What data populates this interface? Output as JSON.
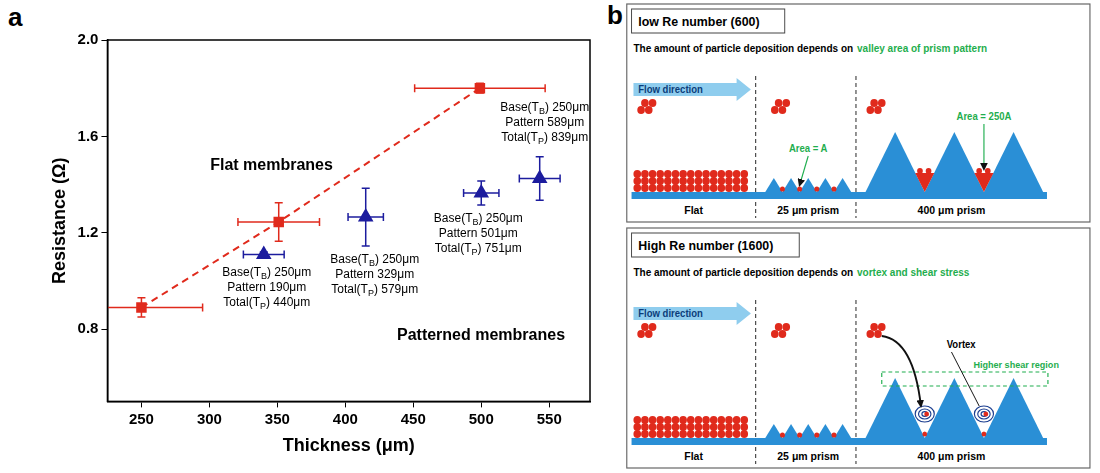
{
  "panel_label": "a",
  "chart_data": {
    "type": "scatter",
    "x_label": "Thickness (μm)",
    "y_label": "Resistance (Ω)",
    "xlim": [
      225,
      580
    ],
    "xticks": [
      250,
      300,
      350,
      400,
      450,
      500,
      550
    ],
    "ylim": [
      0.5,
      2.0
    ],
    "yticks": [
      0.8,
      1.2,
      1.6,
      {
        "value": 2.0,
        "label": "2.0"
      }
    ],
    "grid": false,
    "series": [
      {
        "name": "Flat membranes",
        "color": "#e02a1c",
        "marker": "square",
        "line_style": "dashed",
        "x": [
          250,
          351,
          499
        ],
        "values": [
          0.89,
          1.245,
          1.8
        ],
        "x_errors": [
          45,
          30,
          48
        ],
        "y_errors": [
          0.04,
          0.08,
          0.02
        ]
      },
      {
        "name": "Patterned membranes",
        "color": "#1c1c9e",
        "marker": "triangle",
        "line_style": "none",
        "x": [
          340,
          415,
          500,
          543
        ],
        "values": [
          1.11,
          1.265,
          1.365,
          1.425
        ],
        "x_errors": [
          15,
          13,
          13,
          15
        ],
        "y_errors": [
          0.01,
          0.12,
          0.05,
          0.09
        ],
        "point_labels": [
          [
            "Base(TB) 250μm",
            "Pattern 190μm",
            "Total(TP) 440μm"
          ],
          [
            "Base(TB) 250μm",
            "Pattern 329μm",
            "Total(TP) 579μm"
          ],
          [
            "Base(TB) 250μm",
            "Pattern 501μm",
            "Total(TP) 751μm"
          ],
          [
            "Base(TB) 250μm",
            "Pattern 589μm",
            "Total(TP) 839μm"
          ]
        ]
      }
    ]
  },
  "diagram": {
    "panel_label": "b",
    "panels": [
      {
        "title": "low Re number (600)",
        "statement": "The amount of particle deposition depends on",
        "emphasis": "valley area of prism pattern",
        "flow": "Flow direction",
        "sections": [
          "Flat",
          "25 μm prism",
          "400 μm prism"
        ],
        "notes": [
          "Area = A",
          "Area = 250A"
        ]
      },
      {
        "title": "High Re number (1600)",
        "statement": "The amount of particle deposition depends on",
        "emphasis": "vortex and shear stress",
        "flow": "Flow direction",
        "sections": [
          "Flat",
          "25 μm prism",
          "400 μm prism"
        ],
        "notes": [
          "Vortex",
          "Higher shear region"
        ]
      }
    ]
  }
}
